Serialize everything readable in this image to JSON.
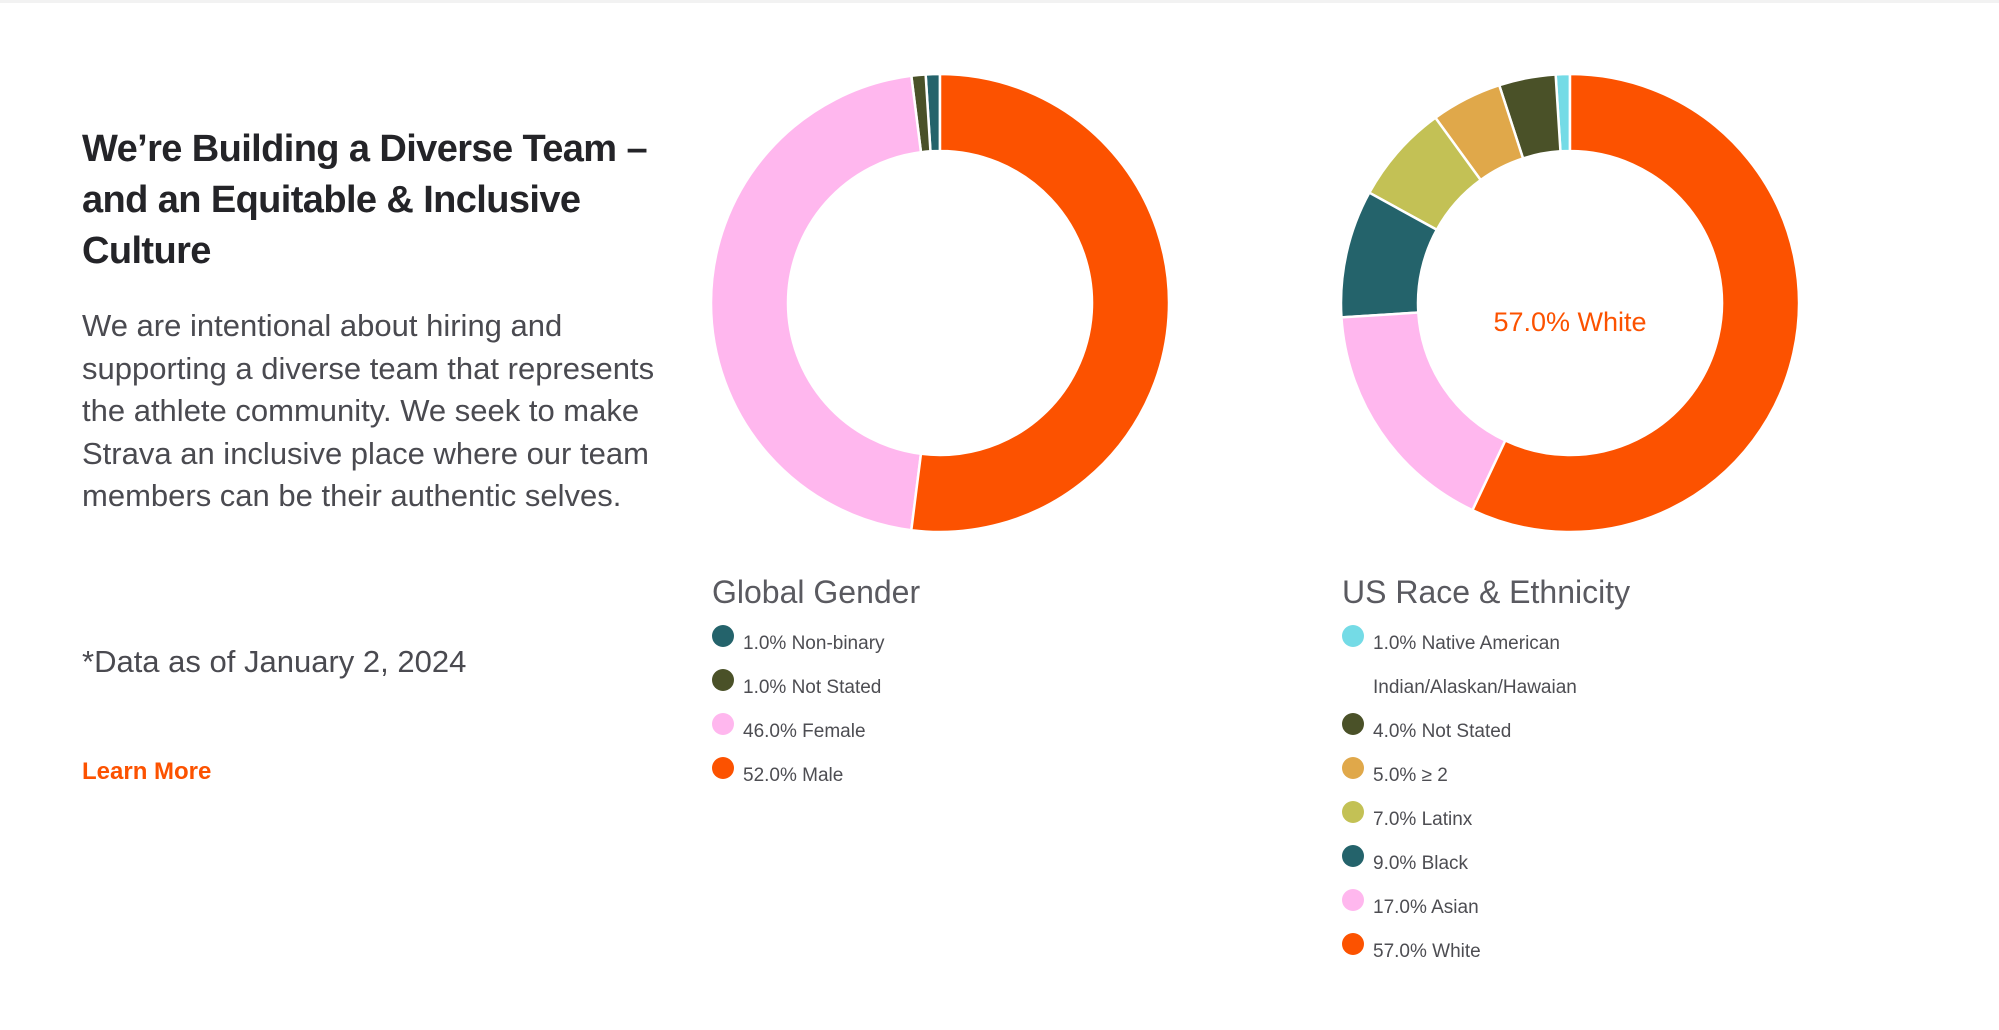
{
  "intro": {
    "heading": "We’re Building a Diverse Team – and an Equitable & Inclusive Culture",
    "description": "We are intentional about hiring and supporting a diverse team that represents the athlete community. We seek to make Strava an inclusive place where our team members can be their authentic selves.",
    "note": "*Data as of January 2, 2024",
    "learn_more": "Learn More"
  },
  "colors": {
    "accent": "#fc5200",
    "heading_text": "#242428",
    "body_text": "#4a4a50"
  },
  "chart_data": [
    {
      "type": "pie",
      "donut": true,
      "title": "Global Gender",
      "center_label": "",
      "slices": [
        {
          "label": "1.0% Non-binary",
          "value": 1.0,
          "color": "#24636b"
        },
        {
          "label": "1.0% Not Stated",
          "value": 1.0,
          "color": "#4a5128"
        },
        {
          "label": "46.0% Female",
          "value": 46.0,
          "color": "#ffb7ee"
        },
        {
          "label": "52.0% Male",
          "value": 52.0,
          "color": "#fc5200"
        }
      ]
    },
    {
      "type": "pie",
      "donut": true,
      "title": "US Race & Ethnicity",
      "center_label": "57.0% White",
      "slices": [
        {
          "label": "1.0% Native American Indian/Alaskan/Hawaian",
          "value": 1.0,
          "color": "#74dbe6"
        },
        {
          "label": "4.0% Not Stated",
          "value": 4.0,
          "color": "#4a5128"
        },
        {
          "label": "5.0% ≥ 2",
          "value": 5.0,
          "color": "#e0a84a"
        },
        {
          "label": "7.0% Latinx",
          "value": 7.0,
          "color": "#c3c155"
        },
        {
          "label": "9.0% Black",
          "value": 9.0,
          "color": "#24636b"
        },
        {
          "label": "17.0% Asian",
          "value": 17.0,
          "color": "#ffb7ee"
        },
        {
          "label": "57.0% White",
          "value": 57.0,
          "color": "#fc5200"
        }
      ]
    }
  ]
}
